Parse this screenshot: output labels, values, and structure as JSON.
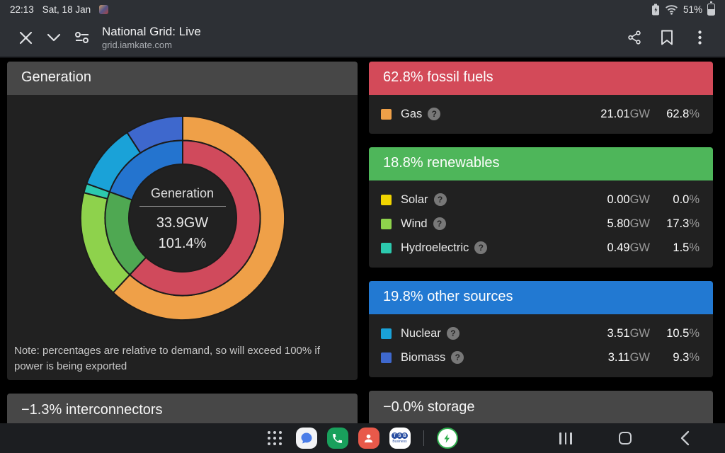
{
  "status_bar": {
    "time": "22:13",
    "date": "Sat, 18 Jan",
    "battery_percent": "51%"
  },
  "browser": {
    "title": "National Grid: Live",
    "url": "grid.iamkate.com"
  },
  "ui": {
    "help_glyph": "?",
    "power_unit": "GW",
    "percent_unit": "%"
  },
  "generation_panel": {
    "title": "Generation",
    "note": "Note: percentages are relative to demand, so will exceed 100% if power is being exported"
  },
  "sections": [
    {
      "title": "62.8% fossil fuels",
      "color": "#d34a59",
      "rows": [
        {
          "label": "Gas",
          "color": "#efa048",
          "power": "21.01",
          "percent": "62.8"
        }
      ]
    },
    {
      "title": "18.8% renewables",
      "color": "#4eb65a",
      "rows": [
        {
          "label": "Solar",
          "color": "#f0d400",
          "power": "0.00",
          "percent": "0.0"
        },
        {
          "label": "Wind",
          "color": "#8ed24c",
          "power": "5.80",
          "percent": "17.3"
        },
        {
          "label": "Hydroelectric",
          "color": "#2cc9ae",
          "power": "0.49",
          "percent": "1.5"
        }
      ]
    },
    {
      "title": "19.8% other sources",
      "color": "#2279d2",
      "rows": [
        {
          "label": "Nuclear",
          "color": "#1aa2d8",
          "power": "3.51",
          "percent": "10.5"
        },
        {
          "label": "Biomass",
          "color": "#3e68cd",
          "power": "3.11",
          "percent": "9.3"
        }
      ]
    }
  ],
  "bottom_panels": [
    {
      "title": "−1.3% interconnectors"
    },
    {
      "title": "−0.0% storage"
    }
  ],
  "chart_data": {
    "type": "donut",
    "title": "Generation",
    "center": {
      "label": "Generation",
      "power": "33.9GW",
      "percent": "101.4%"
    },
    "total_percent": 101.4,
    "inner_ring": [
      {
        "name": "fossil fuels",
        "value": 62.8,
        "color": "#d04a5c"
      },
      {
        "name": "renewables",
        "value": 18.8,
        "color": "#4fa852"
      },
      {
        "name": "other sources",
        "value": 19.8,
        "color": "#2474cf"
      }
    ],
    "outer_ring": [
      {
        "name": "Gas",
        "value": 62.8,
        "color": "#efa048"
      },
      {
        "name": "Solar",
        "value": 0.0,
        "color": "#f0d400"
      },
      {
        "name": "Wind",
        "value": 17.3,
        "color": "#8ed24c"
      },
      {
        "name": "Hydroelectric",
        "value": 1.5,
        "color": "#2cc9ae"
      },
      {
        "name": "Nuclear",
        "value": 10.5,
        "color": "#1aa2d8"
      },
      {
        "name": "Biomass",
        "value": 9.3,
        "color": "#3e68cd"
      }
    ]
  },
  "taskbar": {
    "tsb": {
      "l1": "T",
      "l2": "S",
      "l3": "B",
      "label": "Business"
    }
  }
}
